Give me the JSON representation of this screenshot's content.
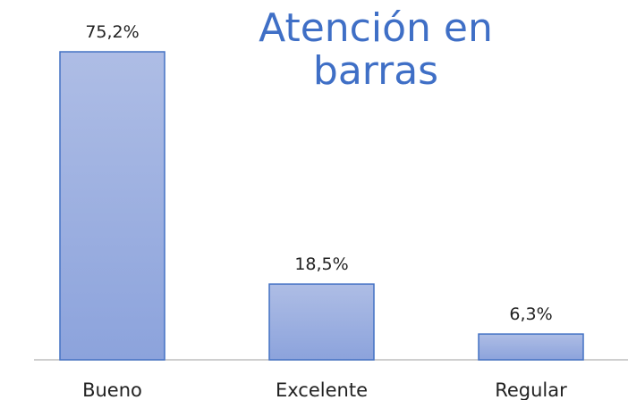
{
  "chart_data": {
    "type": "bar",
    "title": "Atención en barras",
    "categories": [
      "Bueno",
      "Excelente",
      "Regular"
    ],
    "values": [
      75.2,
      18.5,
      6.3
    ],
    "value_labels": [
      "75,2%",
      "18,5%",
      "6,3%"
    ],
    "color": "#4472c4"
  }
}
